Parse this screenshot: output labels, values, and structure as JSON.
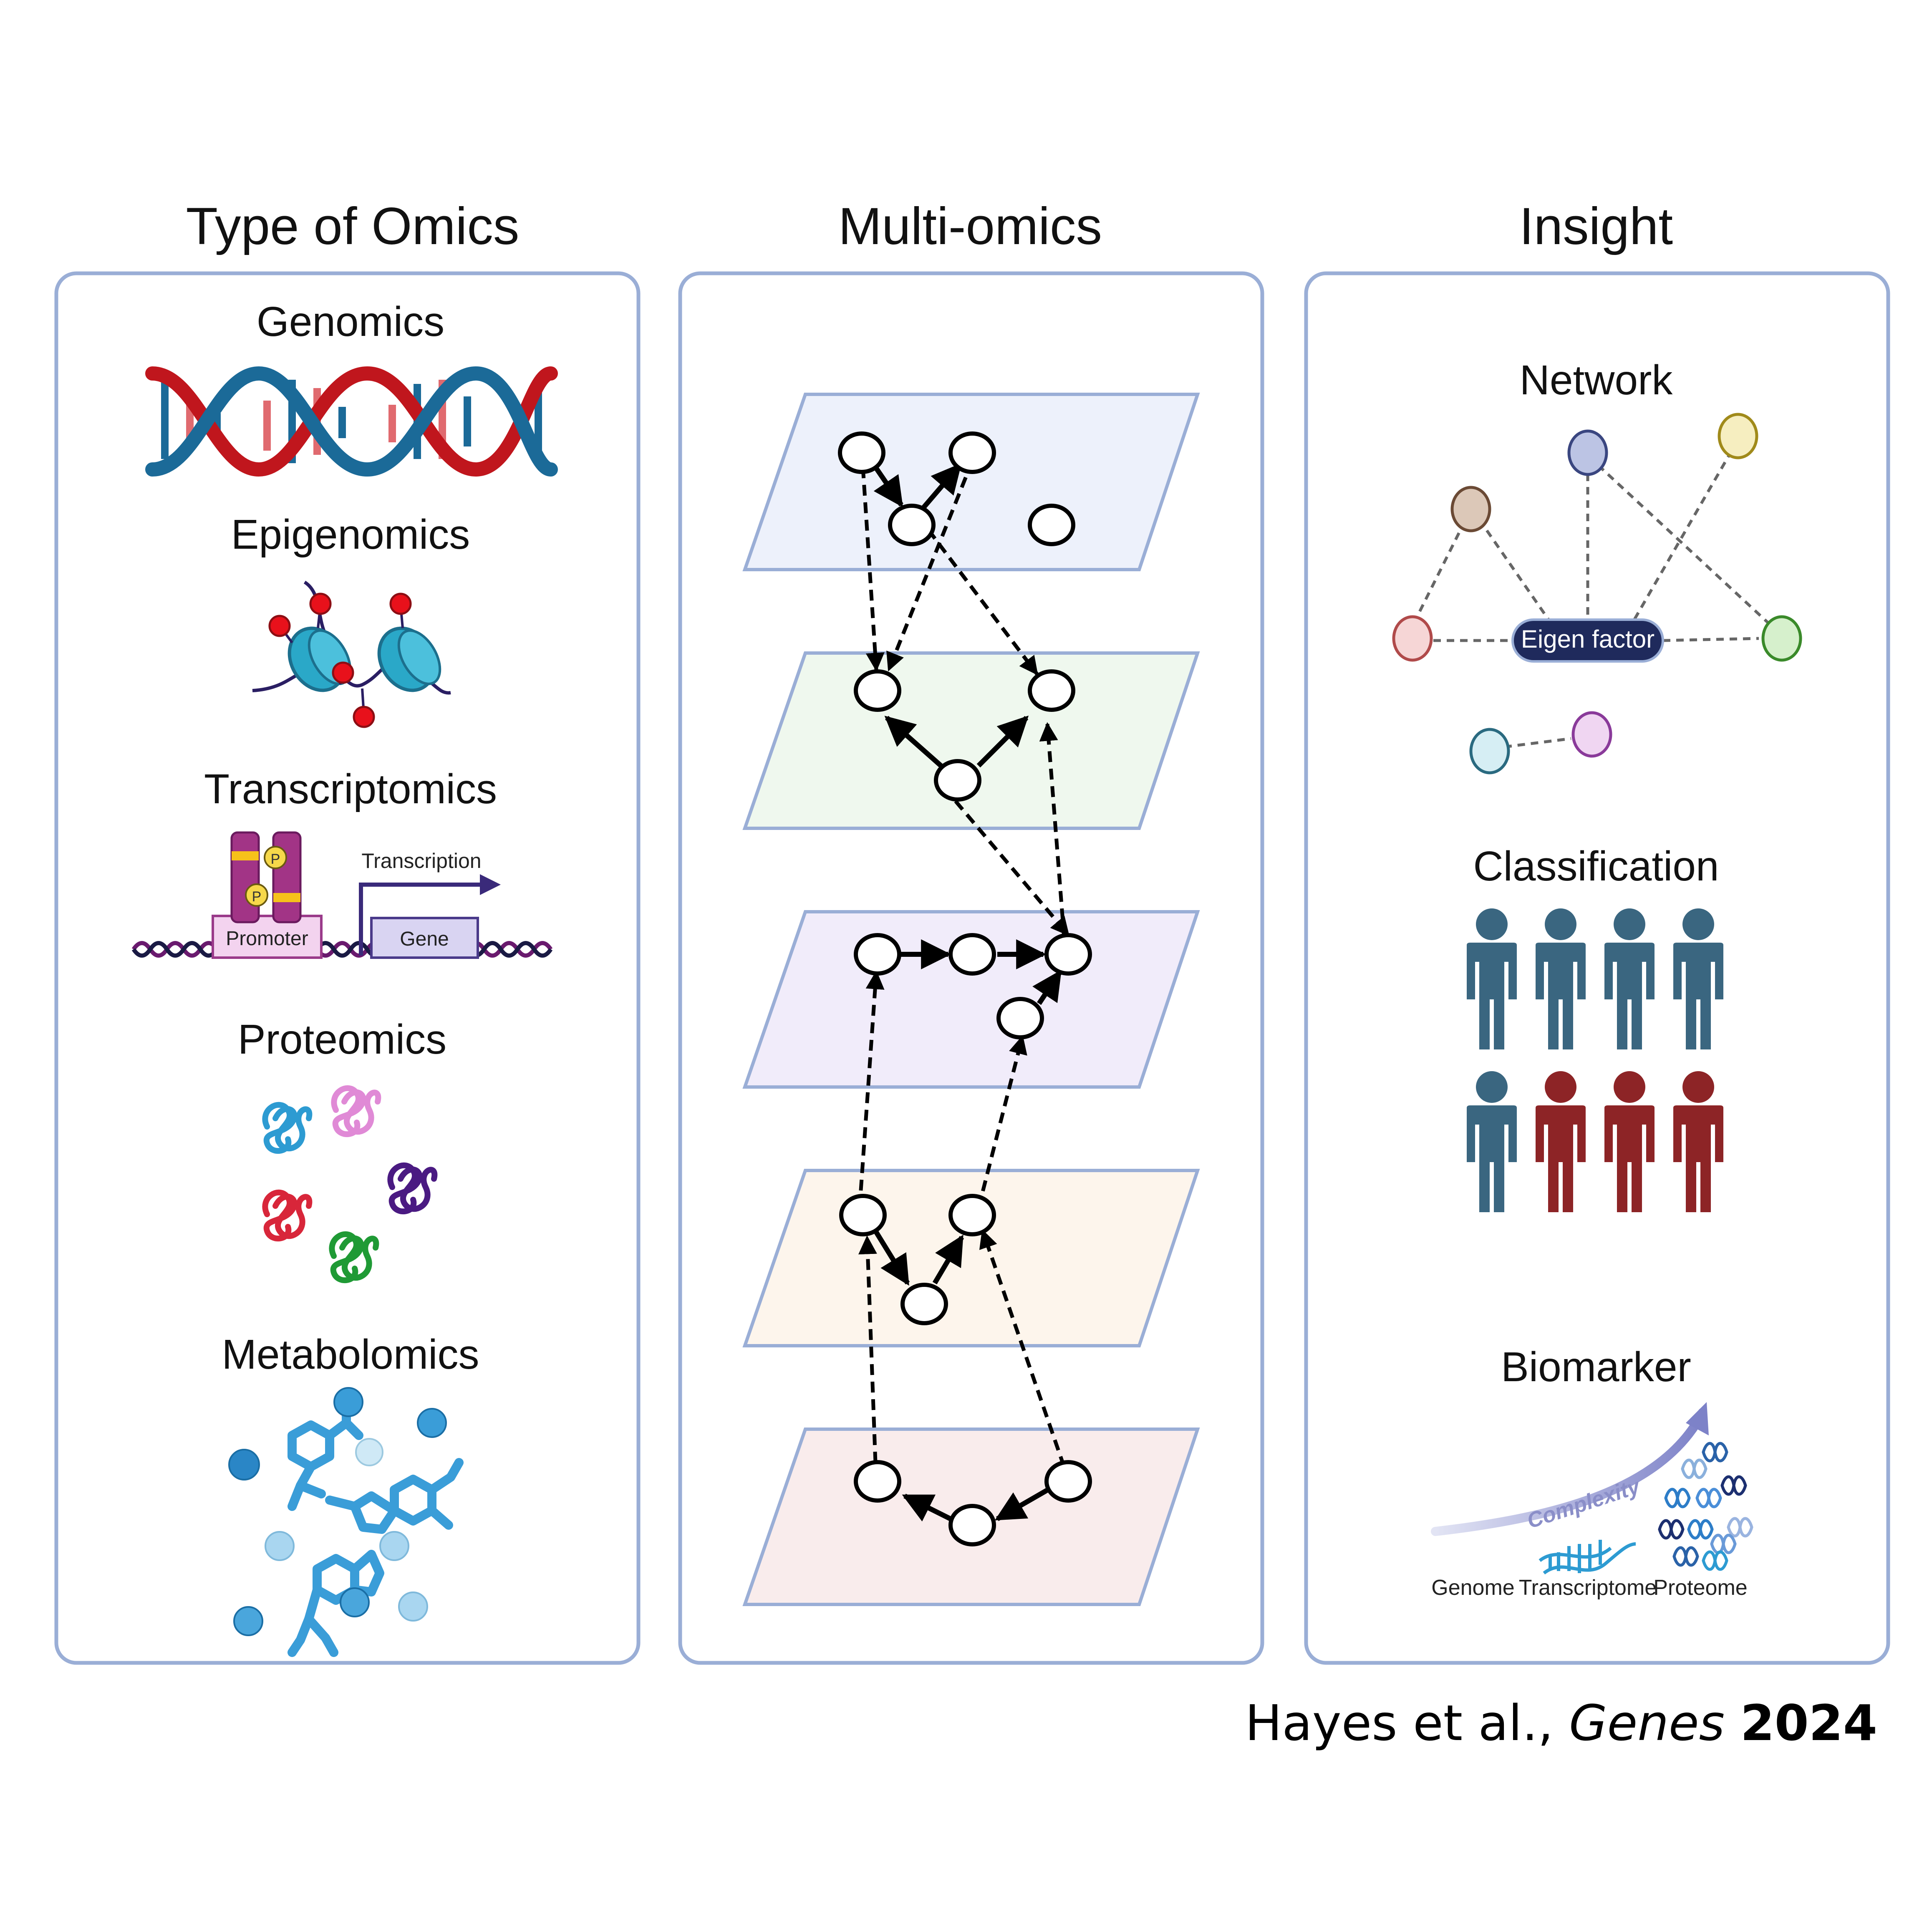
{
  "columns": {
    "left": {
      "title": "Type of Omics"
    },
    "middle": {
      "title": "Multi-omics"
    },
    "right": {
      "title": "Insight"
    }
  },
  "omics": {
    "genomics": "Genomics",
    "epigenomics": "Epigenomics",
    "transcriptomics": "Transcriptomics",
    "transcription_label": "Transcription",
    "promoter_label": "Promoter",
    "gene_label": "Gene",
    "phospho_label": "P",
    "proteomics": "Proteomics",
    "metabolomics": "Metabolomics"
  },
  "insight": {
    "network": "Network",
    "eigen_factor": "Eigen factor",
    "classification": "Classification",
    "biomarker": "Biomarker",
    "complexity": "Complexity",
    "genome": "Genome",
    "transcriptome": "Transcriptome",
    "proteome": "Proteome"
  },
  "colors": {
    "panel_border": "#9aaed6",
    "dna_red": "#c0161d",
    "dna_blue": "#1b6a98",
    "person_blue": "#3a6680",
    "person_red": "#8d2426",
    "layer_fills": [
      "#edf1fb",
      "#eff8ee",
      "#f1ecfa",
      "#fdf5ec",
      "#f9ecec"
    ],
    "eigen_bg": "#1f2a5c"
  },
  "classification": {
    "blue_count": 5,
    "red_count": 3
  },
  "citation": {
    "authors": "Hayes et al., ",
    "journal": "Genes",
    "year": "2024"
  }
}
